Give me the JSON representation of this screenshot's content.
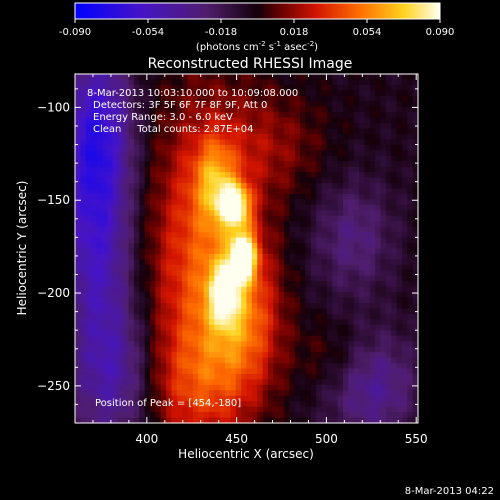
{
  "chart_data": {
    "type": "heatmap",
    "title": "Reconstructed RHESSI Image",
    "xlabel": "Heliocentric X (arcsec)",
    "ylabel": "Heliocentric Y (arcsec)",
    "xlim": [
      360,
      551
    ],
    "ylim": [
      -270,
      -82
    ],
    "x_ticks": [
      400,
      450,
      500,
      550
    ],
    "y_ticks": [
      -100,
      -150,
      -200,
      -250
    ],
    "colorbar": {
      "min": -0.09,
      "max": 0.09,
      "ticks": [
        "-0.090",
        "-0.054",
        "-0.018",
        "0.018",
        "0.054",
        "0.090"
      ],
      "label_parts": [
        "(photons cm",
        "-2",
        " s",
        "-1",
        " asec",
        "-2",
        ")"
      ]
    },
    "annotations": [
      "8-Mar-2013 10:03:10.000 to 10:09:08.000",
      "Detectors: 3F 5F 6F 7F 8F 9F, Att 0",
      "Energy Range: 3.0 - 6.0 keV",
      "Clean     Total counts: 2.87E+04"
    ],
    "peak_label": "Position of Peak = [454,-180]",
    "peak": [
      454,
      -180
    ],
    "sources": [
      {
        "x": 454,
        "y": -180,
        "amp": 0.085,
        "sx": 5,
        "sy": 9
      },
      {
        "x": 449,
        "y": -153,
        "amp": 0.075,
        "sx": 6,
        "sy": 8
      },
      {
        "x": 443,
        "y": -200,
        "amp": 0.052,
        "sx": 6,
        "sy": 12
      },
      {
        "x": 438,
        "y": -140,
        "amp": 0.038,
        "sx": 8,
        "sy": 16
      },
      {
        "x": 432,
        "y": -185,
        "amp": 0.048,
        "sx": 22,
        "sy": 60
      },
      {
        "x": 455,
        "y": -215,
        "amp": 0.036,
        "sx": 14,
        "sy": 26
      },
      {
        "x": 425,
        "y": -250,
        "amp": 0.022,
        "sx": 22,
        "sy": 22
      },
      {
        "x": 470,
        "y": -120,
        "amp": 0.018,
        "sx": 22,
        "sy": 20
      },
      {
        "x": 505,
        "y": -235,
        "amp": 0.016,
        "sx": 14,
        "sy": 14
      }
    ],
    "negative_sources": [
      {
        "x": 372,
        "y": -110,
        "amp": -0.05,
        "sx": 14,
        "sy": 30
      },
      {
        "x": 372,
        "y": -170,
        "amp": -0.05,
        "sx": 14,
        "sy": 40
      },
      {
        "x": 382,
        "y": -245,
        "amp": -0.04,
        "sx": 16,
        "sy": 28
      },
      {
        "x": 525,
        "y": -250,
        "amp": -0.035,
        "sx": 18,
        "sy": 20
      },
      {
        "x": 515,
        "y": -170,
        "amp": -0.025,
        "sx": 16,
        "sy": 22
      }
    ],
    "background": -0.004
  },
  "footer": {
    "date": "8-Mar-2013 04:22"
  }
}
